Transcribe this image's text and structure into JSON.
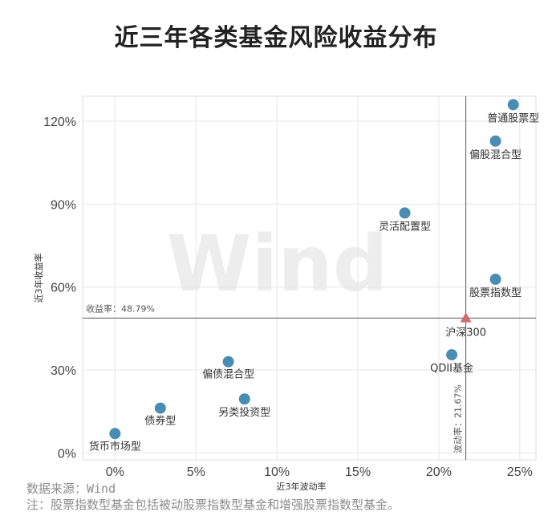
{
  "chart_data": {
    "type": "scatter",
    "title": "近三年各类基金风险收益分布",
    "xlabel": "近3年波动率",
    "ylabel": "近3年收益率",
    "xlim": [
      -0.02,
      0.26
    ],
    "ylim": [
      -0.025,
      1.29
    ],
    "xticks": [
      0,
      0.05,
      0.1,
      0.15,
      0.2,
      0.25
    ],
    "xtick_labels": [
      "0%",
      "5%",
      "10%",
      "15%",
      "20%",
      "25%"
    ],
    "yticks": [
      0,
      0.3,
      0.6,
      0.9,
      1.2
    ],
    "ytick_labels": [
      "0%",
      "30%",
      "60%",
      "90%",
      "120%"
    ],
    "grid": true,
    "points": [
      {
        "name": "货币市场型",
        "x": 0.0,
        "y": 0.07
      },
      {
        "name": "债券型",
        "x": 0.028,
        "y": 0.162
      },
      {
        "name": "偏债混合型",
        "x": 0.07,
        "y": 0.33
      },
      {
        "name": "另类投资型",
        "x": 0.08,
        "y": 0.195
      },
      {
        "name": "灵活配置型",
        "x": 0.179,
        "y": 0.868
      },
      {
        "name": "QDII基金",
        "x": 0.208,
        "y": 0.355
      },
      {
        "name": "股票指数型",
        "x": 0.235,
        "y": 0.628
      },
      {
        "name": "偏股混合型",
        "x": 0.235,
        "y": 1.128
      },
      {
        "name": "普通股票型",
        "x": 0.246,
        "y": 1.26
      }
    ],
    "benchmark": {
      "name": "沪深300",
      "x": 0.2167,
      "y": 0.4879
    },
    "reference_lines": {
      "horizontal_label": "收益率：48.79%",
      "vertical_label": "波动率：21.67%"
    },
    "watermark": "Wind",
    "colors": {
      "point": "#4a8db2",
      "benchmark": "#d46a6a",
      "grid": "#e6e6e6",
      "refline": "#555555"
    }
  },
  "footer": {
    "source": "数据来源：Wind",
    "note": "注：股票指数型基金包括被动股票指数型基金和增强股票指数型基金。"
  }
}
